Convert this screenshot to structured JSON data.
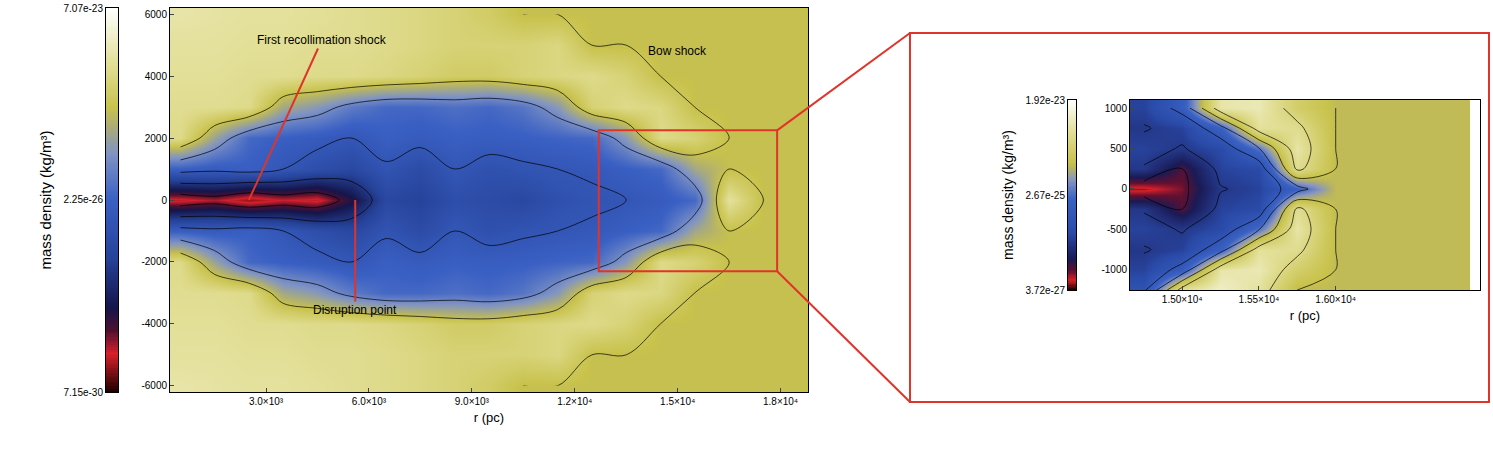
{
  "chart_data": [
    {
      "type": "heatmap",
      "xlabel": "r (pc)",
      "x": [
        500,
        1500,
        2500,
        3500,
        4500,
        5500,
        6500,
        7500,
        8500,
        9500,
        10500,
        11500,
        12500,
        13500,
        14500,
        15500,
        16500,
        17500,
        18500
      ],
      "y": [
        -6000,
        -5000,
        -4000,
        -3000,
        -2000,
        -1000,
        0,
        1000,
        2000,
        3000,
        4000,
        5000,
        6000
      ],
      "z": [
        [
          1e-23,
          9e-24,
          8e-24,
          8e-24,
          7e-24,
          6e-24,
          5e-24,
          4e-24,
          3e-24,
          2e-24,
          1e-24,
          1e-24,
          1e-24,
          1e-24,
          1e-24,
          1e-24,
          1e-24,
          1e-24,
          1e-24
        ],
        [
          8e-24,
          8e-24,
          7e-24,
          7e-24,
          6e-24,
          6e-24,
          5e-24,
          4e-24,
          3e-24,
          3e-24,
          3e-24,
          4e-24,
          1e-24,
          1e-24,
          1e-24,
          1e-24,
          1e-24,
          1e-24,
          1e-24
        ],
        [
          7e-24,
          7e-24,
          6e-24,
          6e-24,
          5e-24,
          5e-24,
          4e-24,
          3e-24,
          2e-24,
          2e-24,
          3e-24,
          4e-24,
          5e-24,
          3e-24,
          1e-24,
          1e-24,
          1e-24,
          1e-24,
          1e-24
        ],
        [
          6e-24,
          6e-24,
          5e-24,
          4e-25,
          2e-25,
          6e-26,
          3e-26,
          3e-26,
          4e-26,
          3e-26,
          5e-26,
          2e-25,
          3e-24,
          5e-24,
          4e-24,
          1e-24,
          1e-24,
          1e-24,
          1e-24
        ],
        [
          5e-24,
          3e-25,
          3e-26,
          2e-26,
          1.5e-26,
          1e-26,
          2e-26,
          1.5e-26,
          2e-26,
          1.8e-26,
          2e-26,
          2.5e-26,
          3e-26,
          2e-25,
          5e-24,
          3e-24,
          1e-24,
          1e-24,
          1e-24
        ],
        [
          2e-26,
          1.5e-26,
          2e-26,
          1e-26,
          5e-27,
          3e-27,
          8e-27,
          4e-27,
          1e-26,
          6e-27,
          8e-27,
          1e-26,
          1.2e-26,
          2e-26,
          3e-26,
          4e-25,
          1e-24,
          1e-24,
          1e-24
        ],
        [
          3e-29,
          5e-29,
          2e-29,
          4e-29,
          3e-29,
          2e-28,
          3e-27,
          2e-27,
          5e-27,
          4e-27,
          3e-27,
          6e-27,
          8e-27,
          1e-26,
          1.5e-26,
          3e-26,
          8e-24,
          1e-24,
          1e-24
        ],
        [
          2e-26,
          1.5e-26,
          2e-26,
          1e-26,
          5e-27,
          3e-27,
          8e-27,
          4e-27,
          1e-26,
          6e-27,
          8e-27,
          1e-26,
          1.2e-26,
          2e-26,
          3e-26,
          4e-25,
          1e-24,
          1e-24,
          1e-24
        ],
        [
          5e-24,
          3e-25,
          3e-26,
          2e-26,
          1.5e-26,
          1e-26,
          2e-26,
          1.5e-26,
          2e-26,
          1.8e-26,
          2e-26,
          2.5e-26,
          3e-26,
          2e-25,
          5e-24,
          3e-24,
          1e-24,
          1e-24,
          1e-24
        ],
        [
          6e-24,
          6e-24,
          5e-24,
          4e-25,
          2e-25,
          6e-26,
          3e-26,
          3e-26,
          4e-26,
          3e-26,
          5e-26,
          2e-25,
          3e-24,
          5e-24,
          4e-24,
          1e-24,
          1e-24,
          1e-24,
          1e-24
        ],
        [
          7e-24,
          7e-24,
          6e-24,
          6e-24,
          5e-24,
          5e-24,
          4e-24,
          3e-24,
          2e-24,
          2e-24,
          3e-24,
          4e-24,
          5e-24,
          3e-24,
          1e-24,
          1e-24,
          1e-24,
          1e-24,
          1e-24
        ],
        [
          8e-24,
          8e-24,
          7e-24,
          7e-24,
          6e-24,
          6e-24,
          5e-24,
          4e-24,
          3e-24,
          3e-24,
          3e-24,
          4e-24,
          1e-24,
          1e-24,
          1e-24,
          1e-24,
          1e-24,
          1e-24,
          1e-24
        ],
        [
          1e-23,
          9e-24,
          8e-24,
          8e-24,
          7e-24,
          6e-24,
          5e-24,
          4e-24,
          3e-24,
          2e-24,
          1e-24,
          1e-24,
          1e-24,
          1e-24,
          1e-24,
          1e-24,
          1e-24,
          1e-24,
          1e-24
        ]
      ],
      "xlim": [
        200,
        18800
      ],
      "ylim": [
        -6200,
        6200
      ],
      "xticks": [
        {
          "value": 3000,
          "label": "3.0×10³"
        },
        {
          "value": 6000,
          "label": "6.0×10³"
        },
        {
          "value": 9000,
          "label": "9.0×10³"
        },
        {
          "value": 12000,
          "label": "1.2×10⁴"
        },
        {
          "value": 15000,
          "label": "1.5×10⁴"
        },
        {
          "value": 18000,
          "label": "1.8×10⁴"
        }
      ],
      "yticks": [
        -6000,
        -4000,
        -2000,
        0,
        2000,
        4000,
        6000
      ],
      "colorbar": {
        "title": "mass density (kg/m³)",
        "log": true,
        "range": [
          7.15e-30,
          7.07e-23
        ],
        "ticks": [
          {
            "value": 7.15e-30,
            "label": "7.15e-30"
          },
          {
            "value": 2.25e-26,
            "label": "2.25e-26"
          },
          {
            "value": 7.07e-23,
            "label": "7.07e-23"
          }
        ]
      },
      "annotations": [
        {
          "text": "First recollimation shock",
          "x": 2500,
          "y": 0,
          "line_style": "solid"
        },
        {
          "text": "Disruption point",
          "x": 5600,
          "y": 0,
          "line_style": "solid"
        },
        {
          "text": "Bow shock",
          "x": 15000,
          "y": 4800
        }
      ],
      "zoom_region": {
        "x": [
          12700,
          17900
        ],
        "y": [
          -2300,
          2250
        ]
      }
    },
    {
      "type": "heatmap",
      "xlabel": "r (pc)",
      "x": [
        14750,
        15000,
        15250,
        15500,
        15750,
        16000,
        16250,
        16500,
        16750
      ],
      "y": [
        -1250,
        -1000,
        -750,
        -500,
        -250,
        0,
        250,
        500,
        750,
        1000
      ],
      "z": [
        [
          8e-26,
          5e-24,
          9e-24,
          5e-24,
          1e-24,
          1e-24,
          1e-24,
          1e-24,
          1e-24
        ],
        [
          4e-26,
          1.5e-25,
          6e-24,
          7e-24,
          2e-24,
          1e-24,
          1e-24,
          1e-24,
          1e-24
        ],
        [
          3e-26,
          4e-26,
          2e-25,
          5e-24,
          4e-24,
          1e-24,
          1e-24,
          1e-24,
          1e-24
        ],
        [
          4e-26,
          3e-26,
          5e-26,
          3e-25,
          6e-24,
          1e-24,
          1e-24,
          1e-24,
          1e-24
        ],
        [
          3e-26,
          1e-26,
          4e-26,
          5e-26,
          4e-24,
          1e-24,
          1e-24,
          1e-24,
          1e-24
        ],
        [
          5e-27,
          8e-27,
          3e-26,
          4e-26,
          2e-25,
          1e-24,
          1e-24,
          1e-24,
          1e-24
        ],
        [
          3e-26,
          1e-26,
          4e-26,
          5e-26,
          4e-24,
          1e-24,
          1e-24,
          1e-24,
          1e-24
        ],
        [
          4e-26,
          3e-26,
          5e-26,
          3e-25,
          6e-24,
          1e-24,
          1e-24,
          1e-24,
          1e-24
        ],
        [
          3e-26,
          4e-26,
          2e-25,
          5e-24,
          4e-24,
          1e-24,
          1e-24,
          1e-24,
          1e-24
        ],
        [
          4e-26,
          1.5e-25,
          6e-24,
          7e-24,
          2e-24,
          1e-24,
          1e-24,
          1e-24,
          1e-24
        ]
      ],
      "xlim": [
        14660,
        16940
      ],
      "ylim": [
        -1250,
        1100
      ],
      "xticks": [
        {
          "value": 15000,
          "label": "1.50×10⁴"
        },
        {
          "value": 15500,
          "label": "1.55×10⁴"
        },
        {
          "value": 16000,
          "label": "1.60×10⁴"
        }
      ],
      "yticks": [
        -1000,
        -500,
        0,
        500,
        1000
      ],
      "colorbar": {
        "title": "mass density (kg/m³)",
        "log": true,
        "range": [
          3.72e-27,
          1.92e-23
        ],
        "ticks": [
          {
            "value": 3.72e-27,
            "label": "3.72e-27"
          },
          {
            "value": 2.67e-25,
            "label": "2.67e-25"
          },
          {
            "value": 1.92e-23,
            "label": "1.92e-23"
          }
        ]
      }
    }
  ]
}
